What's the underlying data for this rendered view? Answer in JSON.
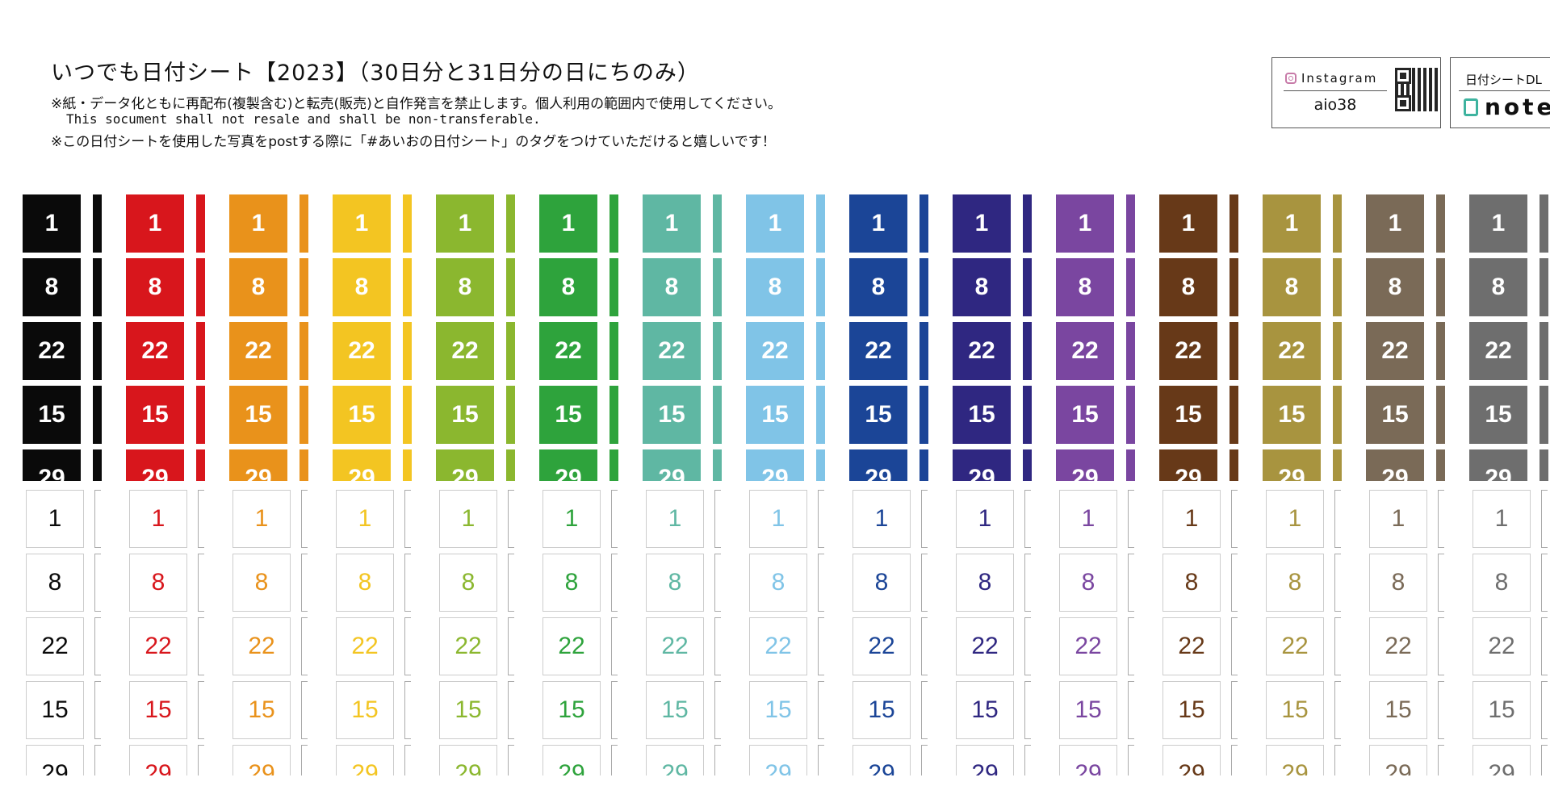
{
  "header": {
    "title": "いつでも日付シート【2023】（30日分と31日分の日にちのみ）",
    "notice_1": "※紙・データ化ともに再配布(複製含む)と転売(販売)と自作発言を禁止します。個人利用の範囲内で使用してください。",
    "notice_2": "This socument shall not resale and shall be non-transferable.",
    "notice_3": "※この日付シートを使用した写真をpostする際に「#あいおの日付シート」のタグをつけていただけると嬉しいです！"
  },
  "instagram": {
    "label": "Instagram",
    "handle": "aio38",
    "icon": "instagram-icon"
  },
  "note_link": {
    "label": "日付シートDL",
    "logo": "note",
    "icon": "note-icon"
  },
  "day_numbers": [
    "1",
    "8",
    "22",
    "15",
    "29"
  ],
  "colors": [
    "#0a0a0a",
    "#d8161c",
    "#e9921b",
    "#f3c522",
    "#8bb72f",
    "#2ea33c",
    "#5fb7a3",
    "#80c4e7",
    "#1b4597",
    "#2f2781",
    "#7a46a0",
    "#673918",
    "#a8943f",
    "#7a6a57",
    "#6e6e6e"
  ]
}
